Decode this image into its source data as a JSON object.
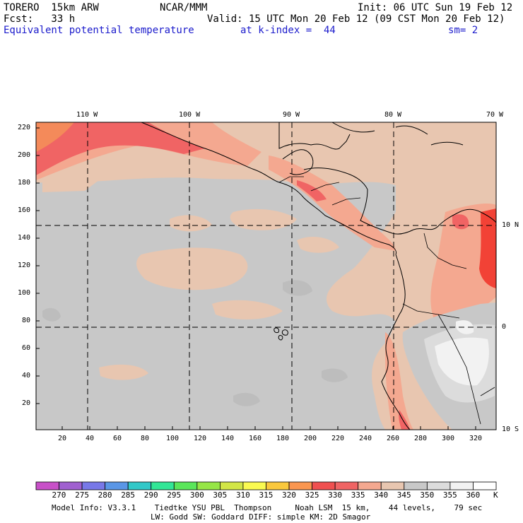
{
  "header": {
    "model": "TORERO  15km ARW",
    "org": "NCAR/MMM",
    "init": "Init: 06 UTC Sun 19 Feb 12",
    "fcst": "Fcst:   33 h",
    "valid": "Valid: 15 UTC Mon 20 Feb 12 (09 CST Mon 20 Feb 12)",
    "field": "Equivalent potential temperature",
    "level": "at k-index =  44",
    "smooth": "sm= 2"
  },
  "map": {
    "lon_labels": [
      "110 W",
      "100 W",
      "90 W",
      "80 W",
      "70 W"
    ],
    "lat_labels": [
      "10 N",
      "0",
      "10 S"
    ],
    "y_ticks": [
      "20",
      "40",
      "60",
      "80",
      "100",
      "120",
      "140",
      "160",
      "180",
      "200",
      "220"
    ],
    "x_ticks": [
      "20",
      "40",
      "60",
      "80",
      "100",
      "120",
      "140",
      "160",
      "180",
      "200",
      "220",
      "240",
      "260",
      "280",
      "300",
      "320"
    ],
    "colors": {
      "background": "#e8c6b0",
      "cool": "#c8c8c8",
      "warm1": "#f4a890",
      "warm2": "#f06a5a",
      "warm3": "#f24236",
      "orange": "#f48a5a",
      "white": "#f2f2f2",
      "lightgray": "#dcdcdc"
    }
  },
  "colorbar": {
    "unit": "K",
    "labels": [
      "270",
      "275",
      "280",
      "285",
      "290",
      "295",
      "300",
      "305",
      "310",
      "315",
      "320",
      "325",
      "330",
      "335",
      "340",
      "345",
      "350",
      "355",
      "360"
    ],
    "colors": [
      "#c850c8",
      "#a060d0",
      "#7878e8",
      "#5a96e6",
      "#32c8c8",
      "#32e696",
      "#5ae65a",
      "#96e646",
      "#d2e646",
      "#fafa50",
      "#fac83c",
      "#fa9650",
      "#f05050",
      "#f06464",
      "#f4a890",
      "#e8c6b0",
      "#c8c8c8",
      "#dcdcdc",
      "#f2f2f2",
      "#ffffff"
    ]
  },
  "footer": {
    "line1": "Model Info: V3.3.1    Tiedtke YSU PBL  Thompson     Noah LSM  15 km,    44 levels,    79 sec",
    "line2": "LW: Godd SW: Goddard DIFF: simple KM: 2D Smagor"
  }
}
